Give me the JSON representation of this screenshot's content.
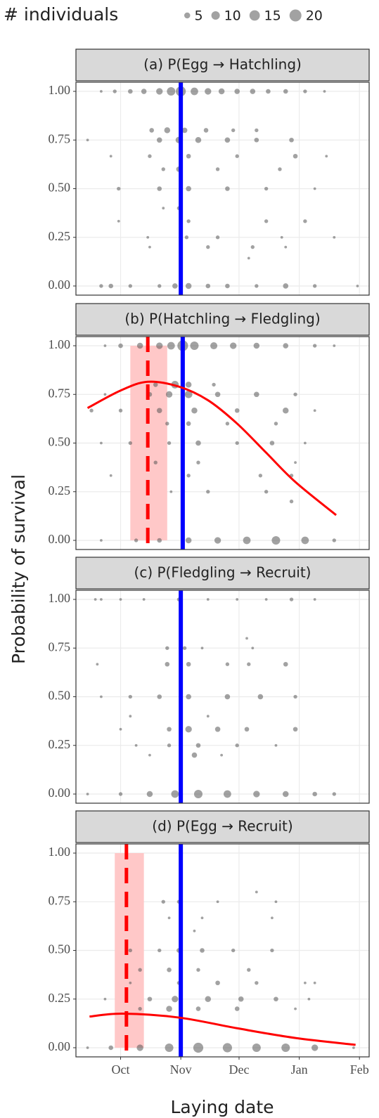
{
  "shared": {
    "xlabel": "Laying date",
    "ylabel": "Probability of survival",
    "xlim": [
      -23,
      128
    ],
    "xticks": [
      {
        "value": 0,
        "label": "Oct"
      },
      {
        "value": 31,
        "label": "Nov"
      },
      {
        "value": 61,
        "label": "Dec"
      },
      {
        "value": 92,
        "label": "Jan"
      },
      {
        "value": 123,
        "label": "Feb"
      }
    ],
    "size_legend": {
      "title": "# individuals",
      "values": [
        5,
        10,
        15,
        20
      ]
    }
  },
  "chart_data": [
    {
      "type": "scatter",
      "title": "(a) P(Egg → Hatchling)",
      "color": "#555555",
      "grid": true,
      "ylim": [
        -0.047,
        1.047
      ],
      "yticks": [
        {
          "value": 0,
          "label": "0.00"
        },
        {
          "value": 0.25,
          "label": "0.25"
        },
        {
          "value": 0.5,
          "label": "0.50"
        },
        {
          "value": 0.75,
          "label": "0.75"
        },
        {
          "value": 1,
          "label": "1.00"
        }
      ],
      "x": [
        -10,
        -3,
        5,
        12,
        20,
        26,
        31,
        38,
        45,
        52,
        60,
        68,
        76,
        85,
        95,
        105,
        16,
        24,
        33,
        44,
        58,
        70,
        -17,
        20,
        30,
        40,
        55,
        70,
        88,
        -5,
        15,
        35,
        60,
        90,
        106,
        22,
        30,
        50,
        82,
        -1,
        20,
        35,
        55,
        75,
        100,
        22,
        30,
        -1,
        35,
        75,
        95,
        14,
        34,
        50,
        83,
        110,
        15,
        45,
        68,
        85,
        66,
        -10,
        -5,
        5,
        20,
        28,
        35,
        45,
        55,
        70,
        85,
        100,
        122
      ],
      "y": [
        1,
        1,
        1,
        1,
        1,
        1,
        1,
        1,
        1,
        1,
        1,
        1,
        1,
        1,
        1,
        1,
        0.8,
        0.8,
        0.8,
        0.8,
        0.8,
        0.8,
        0.75,
        0.75,
        0.75,
        0.75,
        0.75,
        0.75,
        0.75,
        0.667,
        0.667,
        0.667,
        0.667,
        0.667,
        0.667,
        0.6,
        0.6,
        0.6,
        0.6,
        0.5,
        0.5,
        0.5,
        0.5,
        0.5,
        0.5,
        0.4,
        0.4,
        0.333,
        0.333,
        0.333,
        0.333,
        0.25,
        0.25,
        0.25,
        0.25,
        0.25,
        0.2,
        0.2,
        0.2,
        0.2,
        0.143,
        0,
        0,
        0,
        0,
        0,
        0,
        0,
        0,
        0,
        0,
        0,
        0
      ],
      "sizes": [
        1,
        2,
        3,
        4,
        6,
        10,
        14,
        8,
        6,
        5,
        4,
        4,
        3,
        3,
        2,
        1,
        3,
        5,
        4,
        3,
        2,
        2,
        1,
        4,
        6,
        5,
        4,
        3,
        3,
        1,
        2,
        3,
        2,
        3,
        1,
        2,
        4,
        2,
        2,
        2,
        3,
        4,
        3,
        2,
        1,
        1,
        2,
        1,
        2,
        2,
        2,
        1,
        2,
        2,
        1,
        1,
        1,
        2,
        2,
        1,
        1,
        2,
        3,
        2,
        2,
        4,
        5,
        3,
        3,
        2,
        4,
        2,
        1
      ],
      "vline": {
        "x": 31,
        "color": "#0000ff"
      }
    },
    {
      "type": "scatter",
      "title": "(b) P(Hatchling → Fledgling)",
      "color": "#555555",
      "grid": true,
      "ylim": [
        -0.047,
        1.047
      ],
      "yticks": [
        {
          "value": 0,
          "label": "0.00"
        },
        {
          "value": 0.25,
          "label": "0.25"
        },
        {
          "value": 0.5,
          "label": "0.50"
        },
        {
          "value": 0.75,
          "label": "0.75"
        },
        {
          "value": 1,
          "label": "1.00"
        }
      ],
      "x": [
        -8,
        0,
        10,
        20,
        26,
        32,
        38,
        48,
        58,
        70,
        85,
        100,
        110,
        18,
        28,
        35,
        48,
        -8,
        15,
        25,
        35,
        50,
        70,
        90,
        -15,
        0,
        20,
        38,
        60,
        85,
        100,
        24,
        35,
        55,
        80,
        -10,
        5,
        25,
        40,
        60,
        78,
        95,
        18,
        40,
        90,
        -5,
        35,
        72,
        88,
        26,
        45,
        75,
        88,
        -10,
        8,
        20,
        35,
        50,
        65,
        80,
        95,
        110
      ],
      "y": [
        1,
        1,
        1,
        1,
        1,
        1,
        1,
        1,
        1,
        1,
        1,
        1,
        1,
        0.8,
        0.8,
        0.8,
        0.8,
        0.75,
        0.75,
        0.75,
        0.75,
        0.75,
        0.75,
        0.75,
        0.667,
        0.667,
        0.667,
        0.667,
        0.667,
        0.667,
        0.667,
        0.6,
        0.6,
        0.6,
        0.6,
        0.5,
        0.5,
        0.5,
        0.5,
        0.5,
        0.5,
        0.5,
        0.4,
        0.4,
        0.4,
        0.333,
        0.333,
        0.333,
        0.333,
        0.25,
        0.25,
        0.25,
        0.2,
        0,
        0,
        0,
        0,
        0,
        0,
        0,
        0,
        0
      ],
      "sizes": [
        1,
        3,
        5,
        6,
        8,
        16,
        10,
        7,
        6,
        5,
        4,
        2,
        1,
        3,
        8,
        5,
        2,
        1,
        3,
        6,
        8,
        4,
        4,
        2,
        2,
        2,
        4,
        5,
        3,
        5,
        1,
        2,
        3,
        2,
        2,
        1,
        2,
        2,
        4,
        2,
        3,
        1,
        2,
        2,
        1,
        1,
        2,
        2,
        2,
        1,
        2,
        2,
        2,
        1,
        2,
        3,
        5,
        6,
        8,
        10,
        8,
        2
      ],
      "vline": {
        "x": 32,
        "color": "#0000ff"
      },
      "fit": {
        "x": [
          -17,
          0,
          14,
          30,
          45,
          60,
          75,
          90,
          111
        ],
        "y": [
          0.68,
          0.77,
          0.815,
          0.79,
          0.72,
          0.6,
          0.45,
          0.3,
          0.13
        ],
        "color": "#ff0000"
      },
      "optimum": {
        "x": 14,
        "band": [
          5,
          24
        ],
        "color": "#ff0000",
        "band_color": "#ffc8c8"
      }
    },
    {
      "type": "scatter",
      "title": "(c) P(Fledgling → Recruit)",
      "color": "#555555",
      "grid": true,
      "ylim": [
        -0.047,
        1.047
      ],
      "yticks": [
        {
          "value": 0,
          "label": "0.00"
        },
        {
          "value": 0.25,
          "label": "0.25"
        },
        {
          "value": 0.5,
          "label": "0.50"
        },
        {
          "value": 0.75,
          "label": "0.75"
        },
        {
          "value": 1,
          "label": "1.00"
        }
      ],
      "x": [
        -13,
        -10,
        0,
        12,
        30,
        45,
        60,
        75,
        88,
        100,
        65,
        24,
        33,
        42,
        68,
        -12,
        24,
        35,
        55,
        66,
        85,
        31,
        -10,
        5,
        20,
        35,
        55,
        72,
        90,
        5,
        45,
        0,
        25,
        35,
        50,
        65,
        90,
        8,
        25,
        40,
        60,
        80,
        15,
        38,
        52,
        -17,
        0,
        15,
        28,
        40,
        55,
        70,
        85,
        100,
        110
      ],
      "y": [
        1,
        1,
        1,
        1,
        1,
        1,
        1,
        1,
        1,
        1,
        0.8,
        0.75,
        0.75,
        0.75,
        0.75,
        0.667,
        0.667,
        0.667,
        0.667,
        0.667,
        0.667,
        0.6,
        0.5,
        0.5,
        0.5,
        0.5,
        0.5,
        0.5,
        0.5,
        0.4,
        0.4,
        0.333,
        0.333,
        0.333,
        0.333,
        0.333,
        0.333,
        0.25,
        0.25,
        0.25,
        0.25,
        0.25,
        0.2,
        0.2,
        0.2,
        0,
        0,
        0,
        0,
        0,
        0,
        0,
        0,
        0,
        0
      ],
      "sizes": [
        1,
        1,
        1,
        1,
        2,
        1,
        1,
        1,
        2,
        1,
        1,
        2,
        2,
        1,
        1,
        1,
        3,
        3,
        2,
        2,
        3,
        1,
        1,
        2,
        3,
        4,
        4,
        4,
        2,
        1,
        1,
        1,
        3,
        6,
        4,
        3,
        3,
        1,
        2,
        3,
        2,
        1,
        1,
        4,
        1,
        1,
        2,
        5,
        8,
        10,
        8,
        6,
        5,
        3,
        2
      ],
      "vline": {
        "x": 31,
        "color": "#0000ff"
      }
    },
    {
      "type": "scatter",
      "title": "(d) P(Egg → Recruit)",
      "color": "#555555",
      "grid": true,
      "ylim": [
        -0.047,
        1.047
      ],
      "yticks": [
        {
          "value": 0,
          "label": "0.00"
        },
        {
          "value": 0.25,
          "label": "0.25"
        },
        {
          "value": 0.5,
          "label": "0.50"
        },
        {
          "value": 0.75,
          "label": "0.75"
        },
        {
          "value": 1,
          "label": "1.00"
        }
      ],
      "x": [
        70,
        22,
        30,
        50,
        80,
        25,
        42,
        78,
        38,
        5,
        20,
        30,
        42,
        58,
        78,
        10,
        25,
        40,
        66,
        5,
        30,
        50,
        70,
        95,
        100,
        -8,
        15,
        28,
        45,
        62,
        80,
        97,
        10,
        25,
        40,
        60,
        90,
        -17,
        -5,
        10,
        25,
        40,
        55,
        70,
        85,
        100,
        120
      ],
      "y": [
        0.8,
        0.75,
        0.75,
        0.75,
        0.75,
        0.667,
        0.667,
        0.667,
        0.6,
        0.5,
        0.5,
        0.5,
        0.5,
        0.5,
        0.5,
        0.4,
        0.4,
        0.4,
        0.4,
        0.333,
        0.333,
        0.333,
        0.333,
        0.333,
        0.333,
        0.25,
        0.25,
        0.25,
        0.25,
        0.25,
        0.25,
        0.25,
        0.2,
        0.2,
        0.2,
        0.2,
        0.2,
        0,
        0,
        0,
        0,
        0,
        0,
        0,
        0,
        0,
        0
      ],
      "sizes": [
        1,
        2,
        2,
        1,
        1,
        1,
        1,
        1,
        1,
        2,
        2,
        3,
        3,
        2,
        2,
        2,
        3,
        2,
        2,
        1,
        2,
        3,
        2,
        1,
        1,
        1,
        3,
        6,
        5,
        4,
        3,
        1,
        2,
        5,
        3,
        3,
        1,
        1,
        3,
        6,
        10,
        14,
        12,
        10,
        10,
        6,
        1
      ],
      "vline": {
        "x": 31,
        "color": "#0000ff"
      },
      "fit": {
        "x": [
          -16,
          1,
          30,
          60,
          90,
          121
        ],
        "y": [
          0.16,
          0.175,
          0.155,
          0.1,
          0.05,
          0.015
        ],
        "color": "#ff0000"
      },
      "optimum": {
        "x": 3,
        "band": [
          -3,
          12
        ],
        "color": "#ff0000",
        "band_color": "#ffc8c8"
      }
    }
  ]
}
